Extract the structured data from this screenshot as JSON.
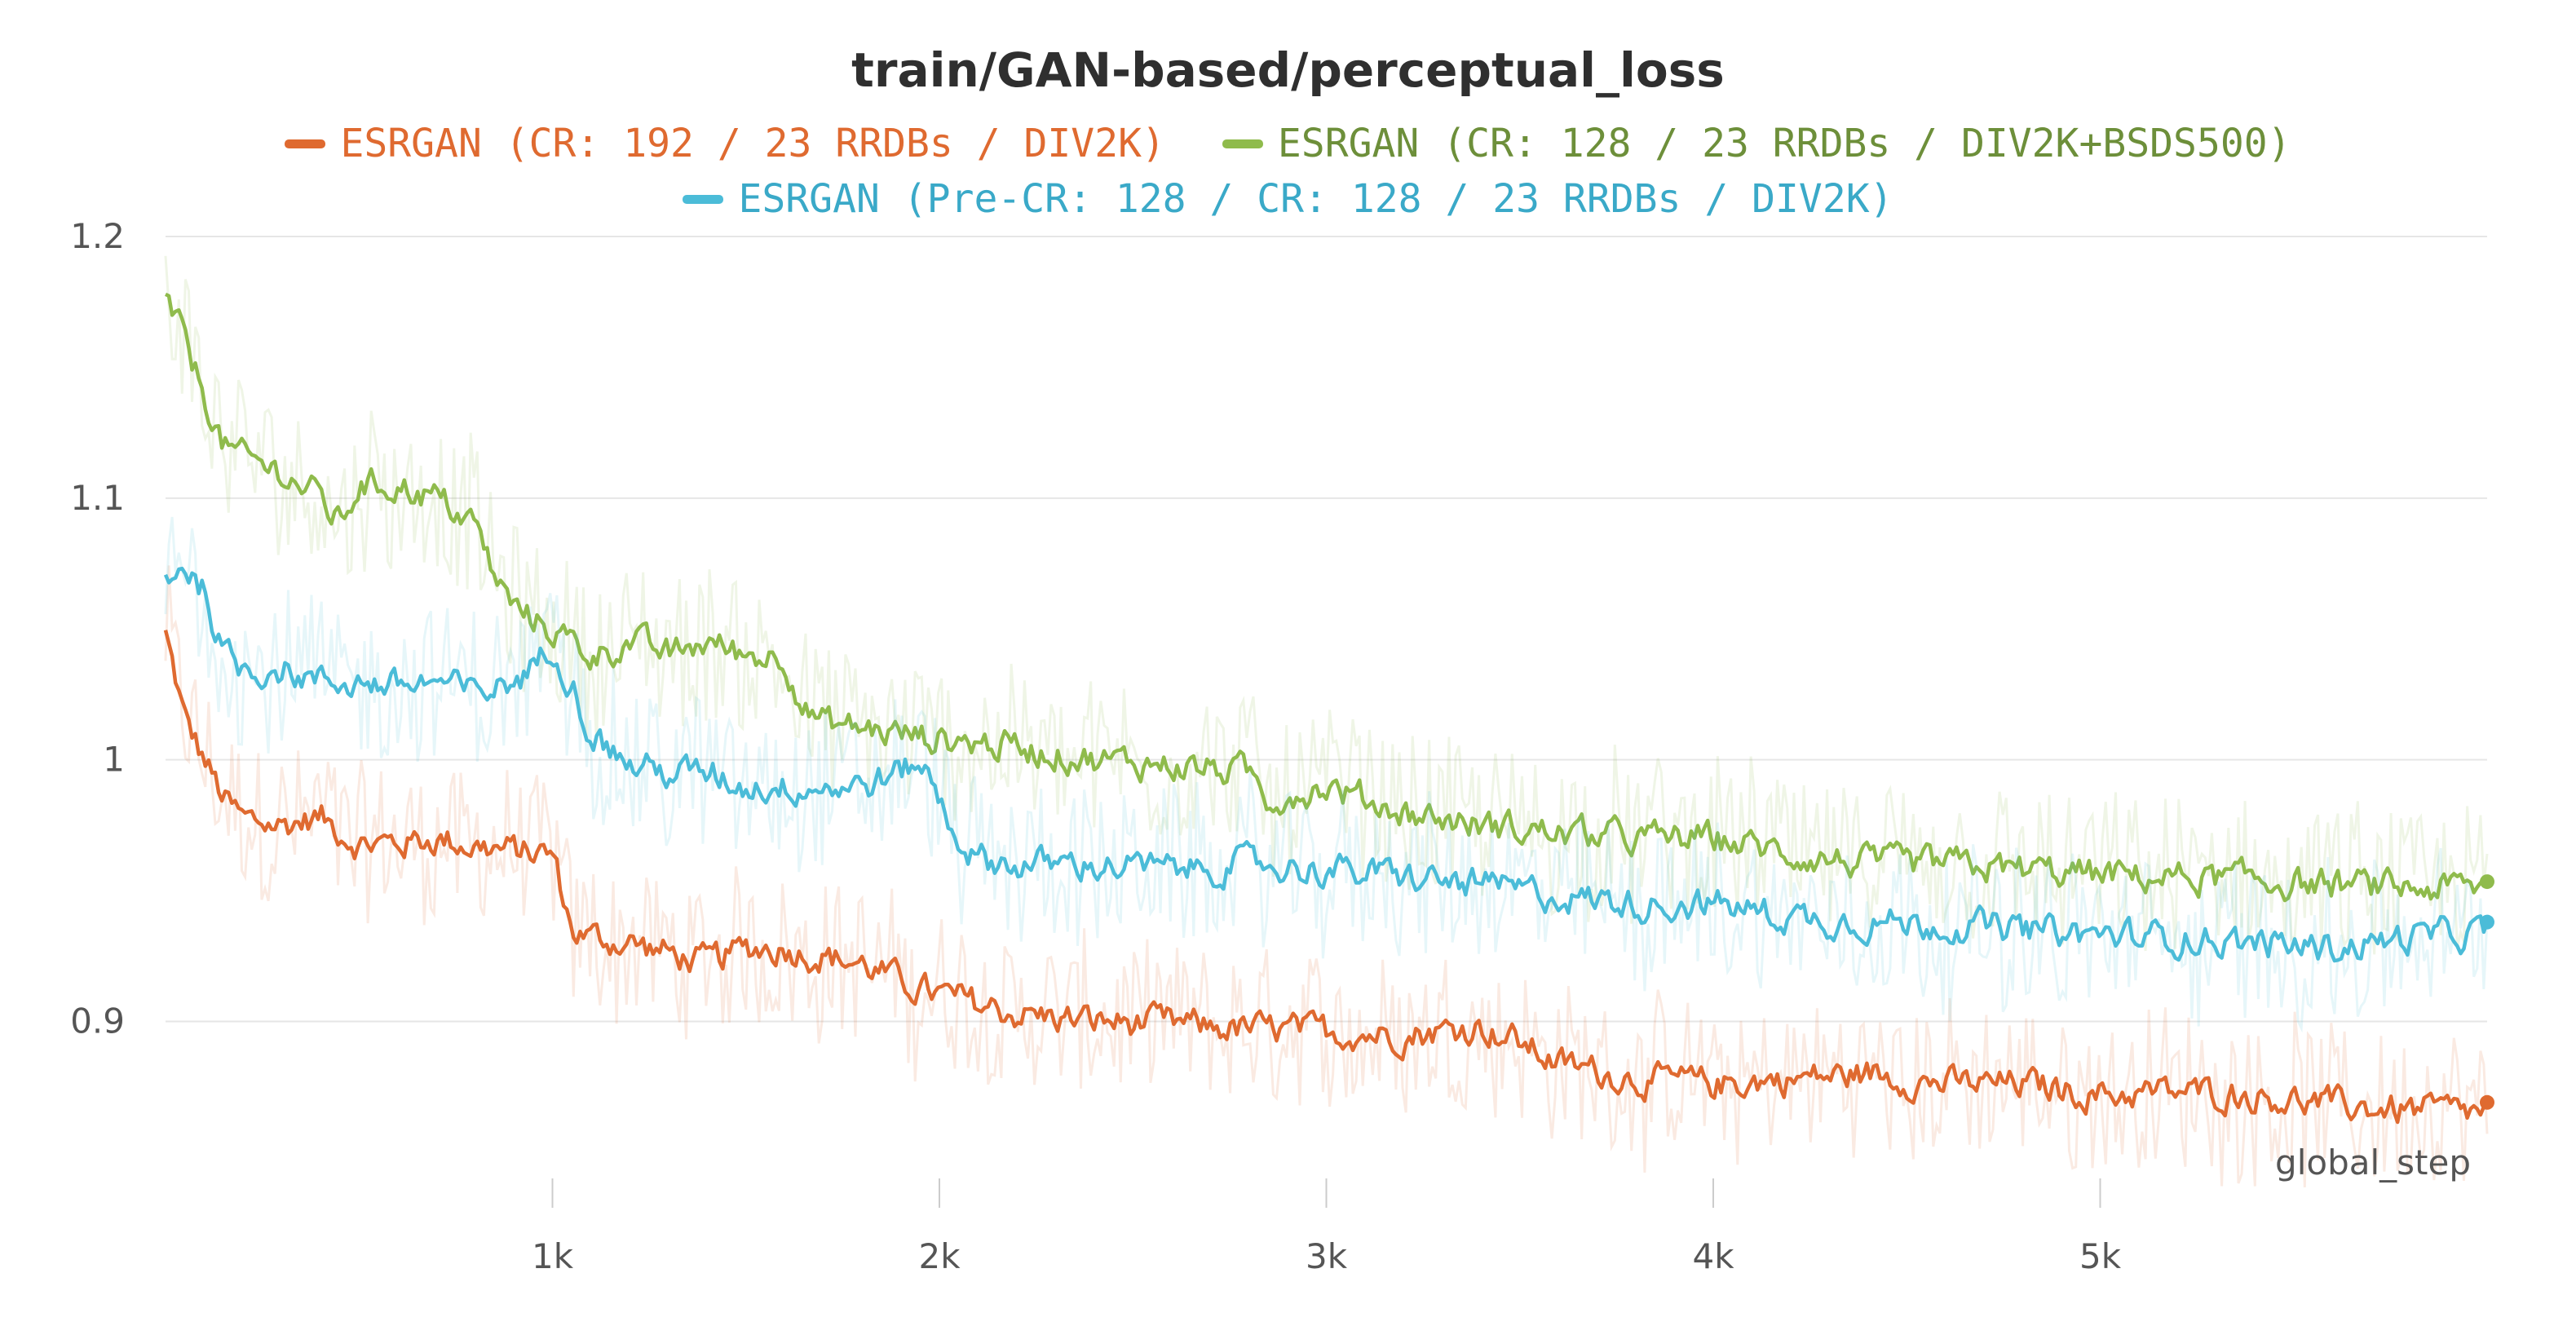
{
  "chart_data": {
    "type": "line",
    "title": "train/GAN-based/perceptual_loss",
    "xlabel": "global_step",
    "ylabel": "",
    "xlim": [
      0,
      6000
    ],
    "ylim": [
      0.84,
      1.2
    ],
    "xticks": [
      1000,
      2000,
      3000,
      4000,
      5000
    ],
    "xtick_labels": [
      "1k",
      "2k",
      "3k",
      "4k",
      "5k"
    ],
    "yticks": [
      0.9,
      1.0,
      1.1,
      1.2
    ],
    "ytick_labels": [
      "0.9",
      "1",
      "1.1",
      "1.2"
    ],
    "grid": "horizontal",
    "legend_position": "top",
    "series": [
      {
        "name": "ESRGAN (CR: 192 / 23 RRDBs / DIV2K)",
        "color": "#df6a30",
        "x": [
          0,
          50,
          100,
          150,
          200,
          300,
          400,
          500,
          600,
          700,
          800,
          900,
          1000,
          1050,
          1100,
          1200,
          1300,
          1400,
          1500,
          1600,
          1700,
          1800,
          1900,
          2000,
          2200,
          2400,
          2600,
          2800,
          3000,
          3200,
          3400,
          3500,
          3600,
          3800,
          4000,
          4200,
          4400,
          4600,
          4800,
          5000,
          5200,
          5400,
          5600,
          5800,
          6000
        ],
        "values": [
          1.048,
          1.015,
          1.0,
          0.985,
          0.977,
          0.975,
          0.978,
          0.968,
          0.968,
          0.97,
          0.967,
          0.965,
          0.964,
          0.935,
          0.932,
          0.93,
          0.926,
          0.922,
          0.928,
          0.928,
          0.925,
          0.922,
          0.915,
          0.91,
          0.903,
          0.9,
          0.899,
          0.897,
          0.896,
          0.895,
          0.898,
          0.892,
          0.884,
          0.878,
          0.876,
          0.878,
          0.88,
          0.876,
          0.876,
          0.872,
          0.873,
          0.872,
          0.868,
          0.866,
          0.865
        ]
      },
      {
        "name": "ESRGAN (CR: 128 / 23 RRDBs / DIV2K+BSDS500)",
        "color": "#8fbb4c",
        "x": [
          0,
          50,
          100,
          150,
          200,
          300,
          400,
          450,
          500,
          600,
          700,
          800,
          850,
          900,
          1000,
          1100,
          1200,
          1300,
          1400,
          1500,
          1600,
          1650,
          1700,
          1800,
          1900,
          2000,
          2200,
          2400,
          2600,
          2800,
          2850,
          3000,
          3200,
          3400,
          3600,
          3800,
          4000,
          4200,
          4400,
          4600,
          4800,
          5000,
          5200,
          5400,
          5600,
          5800,
          6000
        ],
        "values": [
          1.175,
          1.16,
          1.14,
          1.12,
          1.115,
          1.11,
          1.1,
          1.09,
          1.105,
          1.105,
          1.1,
          1.09,
          1.07,
          1.058,
          1.05,
          1.04,
          1.045,
          1.04,
          1.045,
          1.04,
          1.04,
          1.02,
          1.014,
          1.012,
          1.01,
          1.008,
          1.005,
          1.0,
          0.998,
          0.995,
          0.985,
          0.99,
          0.98,
          0.975,
          0.972,
          0.97,
          0.97,
          0.964,
          0.96,
          0.96,
          0.958,
          0.956,
          0.955,
          0.954,
          0.952,
          0.951,
          0.951
        ]
      },
      {
        "name": "ESRGAN (Pre-CR: 128 / CR: 128 / 23 RRDBs / DIV2K)",
        "color": "#4bbcd8",
        "x": [
          0,
          50,
          100,
          150,
          200,
          300,
          400,
          500,
          600,
          700,
          800,
          900,
          950,
          1000,
          1050,
          1100,
          1200,
          1300,
          1400,
          1500,
          1600,
          1700,
          1800,
          1900,
          1950,
          2000,
          2050,
          2100,
          2200,
          2400,
          2600,
          2800,
          3000,
          3200,
          3400,
          3600,
          3800,
          4000,
          4200,
          4400,
          4600,
          4800,
          5000,
          5200,
          5400,
          5600,
          5800,
          6000
        ],
        "values": [
          1.07,
          1.075,
          1.065,
          1.04,
          1.035,
          1.035,
          1.03,
          1.03,
          1.028,
          1.03,
          1.025,
          1.03,
          1.035,
          1.045,
          1.03,
          1.01,
          0.998,
          0.995,
          0.995,
          0.99,
          0.99,
          0.99,
          0.99,
          0.995,
          1.0,
          0.985,
          0.97,
          0.962,
          0.96,
          0.96,
          0.958,
          0.96,
          0.958,
          0.955,
          0.952,
          0.948,
          0.945,
          0.945,
          0.94,
          0.938,
          0.937,
          0.935,
          0.933,
          0.932,
          0.93,
          0.928,
          0.932,
          0.934
        ]
      }
    ]
  }
}
